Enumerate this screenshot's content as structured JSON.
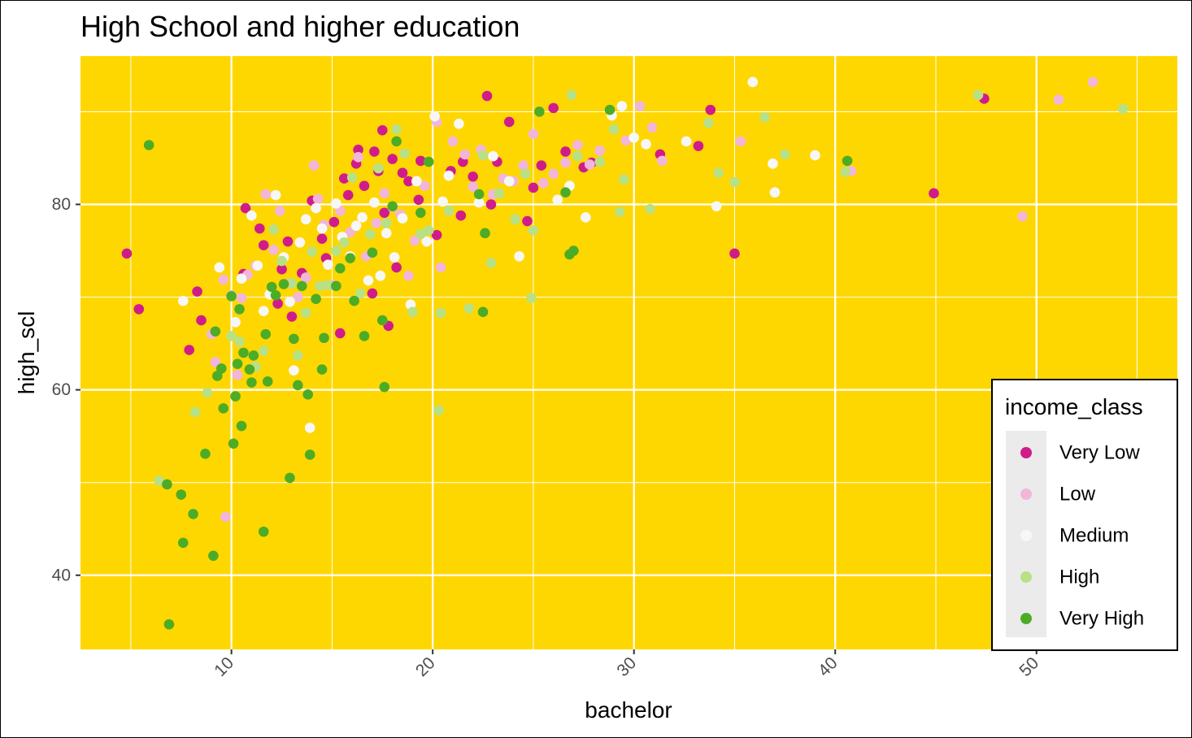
{
  "chart_data": {
    "type": "scatter",
    "title": "High School and higher education",
    "xlabel": "bachelor",
    "ylabel": "high_scl",
    "xlim": [
      2.5,
      57
    ],
    "ylim": [
      32,
      96
    ],
    "xticks": [
      "10",
      "20",
      "30",
      "40",
      "50"
    ],
    "yticks": [
      "40",
      "60",
      "80"
    ],
    "grid": true,
    "background": "#FFD700",
    "legend": {
      "title": "income_class",
      "placement": "right-bottom",
      "entries": [
        "Very Low",
        "Low",
        "Medium",
        "High",
        "Very High"
      ]
    },
    "colors": {
      "Very Low": "#D01C8B",
      "Low": "#F1B6DA",
      "Medium": "#F7F7F7",
      "High": "#B8E186",
      "Very High": "#4DAC26"
    },
    "series": [
      {
        "name": "Very Low",
        "points": [
          [
            4.8,
            74.7
          ],
          [
            5.4,
            68.7
          ],
          [
            7.9,
            64.3
          ],
          [
            8.3,
            70.6
          ],
          [
            8.5,
            67.5
          ],
          [
            10.6,
            72.5
          ],
          [
            10.7,
            79.6
          ],
          [
            11.4,
            77.4
          ],
          [
            11.6,
            75.6
          ],
          [
            12.3,
            69.3
          ],
          [
            12.5,
            73.0
          ],
          [
            12.8,
            76.0
          ],
          [
            13.0,
            67.9
          ],
          [
            13.5,
            72.6
          ],
          [
            14.0,
            80.4
          ],
          [
            14.5,
            76.3
          ],
          [
            14.7,
            74.2
          ],
          [
            15.1,
            78.1
          ],
          [
            15.4,
            66.1
          ],
          [
            15.6,
            82.8
          ],
          [
            15.8,
            81.0
          ],
          [
            16.2,
            84.4
          ],
          [
            16.3,
            85.9
          ],
          [
            16.6,
            82.0
          ],
          [
            17.0,
            70.4
          ],
          [
            17.1,
            85.7
          ],
          [
            17.3,
            83.6
          ],
          [
            17.5,
            88.0
          ],
          [
            17.6,
            79.1
          ],
          [
            17.8,
            66.9
          ],
          [
            18.0,
            84.9
          ],
          [
            18.2,
            73.2
          ],
          [
            18.5,
            83.4
          ],
          [
            18.8,
            82.5
          ],
          [
            19.3,
            80.5
          ],
          [
            19.4,
            84.7
          ],
          [
            20.2,
            76.7
          ],
          [
            20.9,
            83.6
          ],
          [
            21.4,
            78.8
          ],
          [
            21.5,
            84.6
          ],
          [
            22.0,
            83.0
          ],
          [
            22.7,
            91.7
          ],
          [
            22.9,
            80.0
          ],
          [
            23.2,
            84.6
          ],
          [
            23.8,
            88.9
          ],
          [
            24.7,
            78.2
          ],
          [
            25.0,
            81.8
          ],
          [
            25.4,
            84.2
          ],
          [
            26.0,
            90.4
          ],
          [
            26.6,
            85.7
          ],
          [
            27.5,
            84.0
          ],
          [
            27.9,
            84.5
          ],
          [
            31.3,
            85.4
          ],
          [
            33.2,
            86.3
          ],
          [
            33.8,
            90.2
          ],
          [
            35.0,
            74.7
          ],
          [
            44.9,
            81.2
          ],
          [
            47.4,
            91.4
          ]
        ]
      },
      {
        "name": "Low",
        "points": [
          [
            9.0,
            66.0
          ],
          [
            9.2,
            63.0
          ],
          [
            9.6,
            71.9
          ],
          [
            9.7,
            46.3
          ],
          [
            10.0,
            70.2
          ],
          [
            10.3,
            61.6
          ],
          [
            10.5,
            69.9
          ],
          [
            10.8,
            72.4
          ],
          [
            11.2,
            73.4
          ],
          [
            11.7,
            81.1
          ],
          [
            12.1,
            75.1
          ],
          [
            12.4,
            79.3
          ],
          [
            12.9,
            71.5
          ],
          [
            13.3,
            70.0
          ],
          [
            13.7,
            72.1
          ],
          [
            14.1,
            84.2
          ],
          [
            14.3,
            80.6
          ],
          [
            14.6,
            77.8
          ],
          [
            15.0,
            71.3
          ],
          [
            15.4,
            79.3
          ],
          [
            15.9,
            77.0
          ],
          [
            16.3,
            85.1
          ],
          [
            16.7,
            74.4
          ],
          [
            17.2,
            78.0
          ],
          [
            17.6,
            81.2
          ],
          [
            18.0,
            79.7
          ],
          [
            18.4,
            78.9
          ],
          [
            18.8,
            72.3
          ],
          [
            19.1,
            76.1
          ],
          [
            19.6,
            82.0
          ],
          [
            20.2,
            88.9
          ],
          [
            20.4,
            73.2
          ],
          [
            21.0,
            86.8
          ],
          [
            21.6,
            85.4
          ],
          [
            22.0,
            81.9
          ],
          [
            22.4,
            85.9
          ],
          [
            23.0,
            81.1
          ],
          [
            23.5,
            82.8
          ],
          [
            24.0,
            82.5
          ],
          [
            24.5,
            84.2
          ],
          [
            25.0,
            87.6
          ],
          [
            25.5,
            82.3
          ],
          [
            26.0,
            83.3
          ],
          [
            26.6,
            84.5
          ],
          [
            27.2,
            86.4
          ],
          [
            27.8,
            84.3
          ],
          [
            28.3,
            85.8
          ],
          [
            29.6,
            86.9
          ],
          [
            30.3,
            90.6
          ],
          [
            30.9,
            88.3
          ],
          [
            31.4,
            84.7
          ],
          [
            35.3,
            86.8
          ],
          [
            40.8,
            83.6
          ],
          [
            49.3,
            78.7
          ],
          [
            51.1,
            91.3
          ],
          [
            52.8,
            93.2
          ]
        ]
      },
      {
        "name": "Medium",
        "points": [
          [
            7.6,
            69.6
          ],
          [
            9.4,
            73.2
          ],
          [
            10.2,
            67.3
          ],
          [
            10.5,
            72.0
          ],
          [
            11.0,
            78.8
          ],
          [
            11.3,
            73.4
          ],
          [
            11.6,
            68.5
          ],
          [
            11.9,
            70.3
          ],
          [
            12.2,
            81.0
          ],
          [
            12.6,
            74.3
          ],
          [
            12.9,
            69.5
          ],
          [
            13.1,
            62.1
          ],
          [
            13.4,
            75.9
          ],
          [
            13.7,
            78.4
          ],
          [
            13.9,
            55.9
          ],
          [
            14.2,
            79.6
          ],
          [
            14.5,
            77.4
          ],
          [
            14.8,
            73.5
          ],
          [
            15.2,
            80.1
          ],
          [
            15.5,
            76.5
          ],
          [
            15.9,
            74.4
          ],
          [
            16.2,
            77.7
          ],
          [
            16.5,
            78.6
          ],
          [
            16.8,
            71.8
          ],
          [
            17.1,
            80.2
          ],
          [
            17.4,
            72.3
          ],
          [
            17.7,
            76.9
          ],
          [
            18.1,
            74.3
          ],
          [
            18.5,
            78.5
          ],
          [
            18.9,
            69.2
          ],
          [
            19.2,
            82.5
          ],
          [
            19.7,
            76.0
          ],
          [
            20.1,
            89.5
          ],
          [
            20.5,
            80.3
          ],
          [
            20.8,
            83.1
          ],
          [
            21.3,
            88.7
          ],
          [
            22.3,
            80.2
          ],
          [
            23.0,
            85.2
          ],
          [
            23.8,
            82.5
          ],
          [
            24.3,
            74.4
          ],
          [
            26.2,
            80.5
          ],
          [
            26.8,
            82.0
          ],
          [
            27.6,
            78.6
          ],
          [
            28.9,
            89.6
          ],
          [
            29.4,
            90.6
          ],
          [
            30.0,
            87.2
          ],
          [
            30.6,
            86.5
          ],
          [
            32.6,
            86.8
          ],
          [
            34.1,
            79.8
          ],
          [
            35.9,
            93.2
          ],
          [
            36.9,
            84.4
          ],
          [
            37.0,
            81.3
          ],
          [
            39.0,
            85.3
          ]
        ]
      },
      {
        "name": "High",
        "points": [
          [
            6.4,
            50.2
          ],
          [
            8.2,
            57.6
          ],
          [
            8.8,
            59.7
          ],
          [
            10.0,
            65.8
          ],
          [
            10.4,
            65.2
          ],
          [
            11.2,
            62.5
          ],
          [
            11.6,
            64.2
          ],
          [
            12.1,
            77.3
          ],
          [
            12.5,
            73.9
          ],
          [
            13.0,
            71.5
          ],
          [
            13.3,
            63.7
          ],
          [
            13.7,
            68.3
          ],
          [
            14.0,
            74.9
          ],
          [
            14.4,
            71.2
          ],
          [
            14.8,
            71.3
          ],
          [
            15.2,
            75.0
          ],
          [
            15.6,
            75.9
          ],
          [
            16.0,
            82.9
          ],
          [
            16.4,
            70.4
          ],
          [
            16.9,
            76.8
          ],
          [
            17.3,
            83.9
          ],
          [
            17.7,
            78.0
          ],
          [
            18.2,
            88.1
          ],
          [
            18.6,
            85.5
          ],
          [
            19.0,
            68.4
          ],
          [
            19.4,
            76.8
          ],
          [
            19.8,
            77.2
          ],
          [
            20.3,
            57.8
          ],
          [
            20.4,
            68.3
          ],
          [
            20.8,
            79.3
          ],
          [
            21.8,
            68.8
          ],
          [
            22.5,
            85.3
          ],
          [
            22.9,
            73.7
          ],
          [
            23.3,
            81.2
          ],
          [
            24.1,
            78.4
          ],
          [
            24.6,
            83.3
          ],
          [
            24.9,
            69.9
          ],
          [
            25.0,
            77.2
          ],
          [
            26.9,
            91.8
          ],
          [
            27.2,
            85.2
          ],
          [
            28.3,
            84.6
          ],
          [
            29.0,
            88.1
          ],
          [
            29.3,
            79.2
          ],
          [
            29.5,
            82.7
          ],
          [
            30.8,
            79.5
          ],
          [
            33.7,
            88.8
          ],
          [
            34.2,
            83.4
          ],
          [
            35.0,
            82.4
          ],
          [
            36.5,
            89.4
          ],
          [
            37.5,
            85.4
          ],
          [
            40.5,
            83.5
          ],
          [
            47.1,
            91.8
          ],
          [
            54.3,
            90.3
          ]
        ]
      },
      {
        "name": "Very High",
        "points": [
          [
            5.9,
            86.4
          ],
          [
            6.9,
            34.7
          ],
          [
            6.8,
            49.8
          ],
          [
            7.5,
            48.7
          ],
          [
            7.6,
            43.5
          ],
          [
            8.1,
            46.6
          ],
          [
            8.7,
            53.1
          ],
          [
            9.1,
            42.1
          ],
          [
            9.2,
            66.3
          ],
          [
            9.3,
            61.5
          ],
          [
            9.5,
            62.3
          ],
          [
            9.6,
            58.0
          ],
          [
            10.0,
            70.1
          ],
          [
            10.1,
            54.2
          ],
          [
            10.2,
            59.3
          ],
          [
            10.3,
            62.8
          ],
          [
            10.4,
            68.7
          ],
          [
            10.5,
            56.1
          ],
          [
            10.6,
            64.0
          ],
          [
            10.9,
            62.2
          ],
          [
            11.0,
            60.8
          ],
          [
            11.1,
            63.7
          ],
          [
            11.6,
            44.7
          ],
          [
            11.7,
            66.0
          ],
          [
            11.8,
            60.9
          ],
          [
            12.0,
            71.1
          ],
          [
            12.2,
            70.2
          ],
          [
            12.6,
            71.4
          ],
          [
            12.9,
            50.5
          ],
          [
            13.1,
            65.5
          ],
          [
            13.3,
            60.5
          ],
          [
            13.5,
            71.2
          ],
          [
            13.8,
            59.5
          ],
          [
            13.9,
            53.0
          ],
          [
            14.2,
            69.8
          ],
          [
            14.5,
            62.2
          ],
          [
            14.6,
            65.6
          ],
          [
            15.2,
            71.2
          ],
          [
            15.4,
            73.1
          ],
          [
            15.9,
            74.2
          ],
          [
            16.1,
            69.6
          ],
          [
            16.6,
            65.8
          ],
          [
            17.0,
            74.8
          ],
          [
            17.5,
            67.5
          ],
          [
            17.6,
            60.3
          ],
          [
            18.0,
            79.8
          ],
          [
            18.2,
            86.8
          ],
          [
            19.4,
            79.1
          ],
          [
            19.8,
            84.6
          ],
          [
            22.3,
            81.1
          ],
          [
            22.5,
            68.4
          ],
          [
            22.6,
            76.9
          ],
          [
            25.3,
            90.0
          ],
          [
            26.6,
            81.3
          ],
          [
            26.8,
            74.6
          ],
          [
            27.0,
            75.0
          ],
          [
            28.8,
            90.2
          ],
          [
            40.6,
            84.7
          ]
        ]
      }
    ]
  }
}
